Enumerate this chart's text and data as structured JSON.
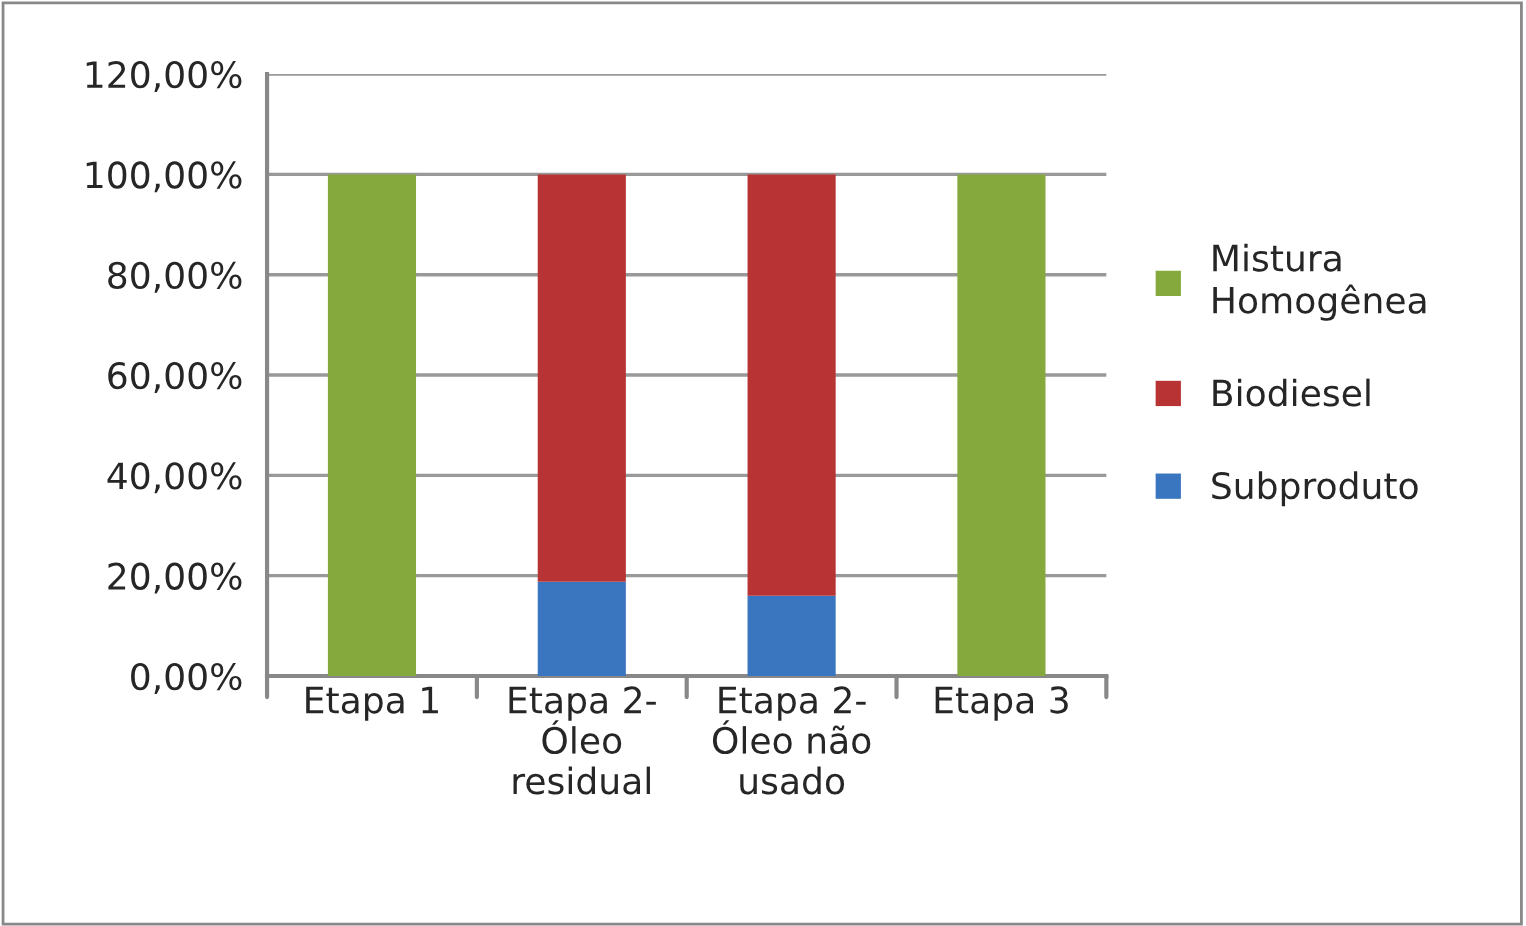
{
  "chart_data": {
    "type": "bar",
    "stacked": true,
    "categories": [
      "Etapa 1",
      "Etapa 2-\nÓleo\nresidual",
      "Etapa 2-\nÓleo não\nusado",
      "Etapa 3"
    ],
    "series": [
      {
        "name": "Subproduto",
        "color": "#3a75c0",
        "values": [
          0,
          18.8,
          16.0,
          0
        ]
      },
      {
        "name": "Biodiesel",
        "color": "#b83434",
        "values": [
          0,
          81.2,
          84.0,
          0
        ]
      },
      {
        "name": "Mistura\nHomogênea",
        "color": "#86a93e",
        "values": [
          100,
          0,
          0,
          100
        ]
      }
    ],
    "ylim": [
      0,
      120
    ],
    "yticks": [
      {
        "value": 0,
        "label": "0,00%"
      },
      {
        "value": 20,
        "label": "20,00%"
      },
      {
        "value": 40,
        "label": "40,00%"
      },
      {
        "value": 60,
        "label": "60,00%"
      },
      {
        "value": 80,
        "label": "80,00%"
      },
      {
        "value": 100,
        "label": "100,00%"
      },
      {
        "value": 120,
        "label": "120,00%"
      }
    ],
    "grid": "y",
    "legend": "right"
  }
}
